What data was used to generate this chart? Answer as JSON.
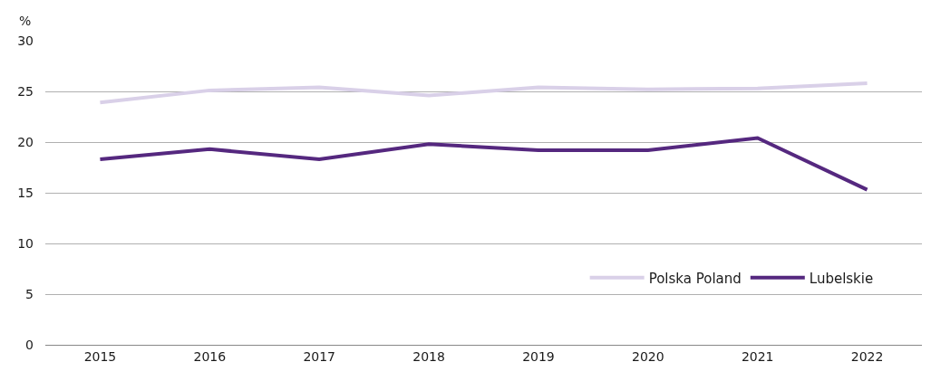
{
  "chart_data": {
    "type": "line",
    "ylabel": "%",
    "categories": [
      "2015",
      "2016",
      "2017",
      "2018",
      "2019",
      "2020",
      "2021",
      "2022"
    ],
    "series": [
      {
        "name": "Polska Poland",
        "color": "#d9d0e8",
        "values": [
          23.9,
          25.1,
          25.4,
          24.6,
          25.4,
          25.2,
          25.3,
          25.8
        ]
      },
      {
        "name": "Lubelskie",
        "color": "#55287f",
        "values": [
          18.3,
          19.3,
          18.3,
          19.8,
          19.2,
          19.2,
          20.4,
          15.3
        ]
      }
    ],
    "ylim": [
      0,
      30
    ],
    "yticks": [
      0,
      5,
      10,
      15,
      20,
      25,
      30
    ],
    "grid": "y",
    "legend": "bottom right",
    "marker": "none",
    "line_style": "solid"
  }
}
